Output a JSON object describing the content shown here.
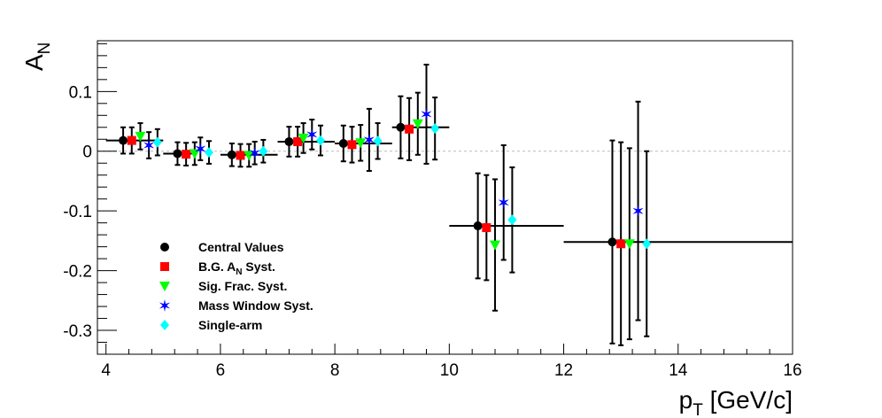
{
  "chart_data": {
    "type": "scatter",
    "title": "",
    "xlabel": "p",
    "xlabel_sub": "T",
    "xlabel_unit": " [GeV/c]",
    "ylabel": "A",
    "ylabel_sub": "N",
    "xlim": [
      3.85,
      16
    ],
    "ylim": [
      -0.34,
      0.185
    ],
    "xticks": [
      4,
      6,
      8,
      10,
      12,
      14,
      16
    ],
    "xtick_labels": [
      "4",
      "6",
      "8",
      "10",
      "12",
      "14",
      "16"
    ],
    "yticks": [
      -0.3,
      -0.2,
      -0.1,
      0,
      0.1
    ],
    "ytick_labels": [
      "-0.3",
      "-0.2",
      "-0.1",
      "0",
      "0.1"
    ],
    "zero_line": true,
    "grid": false,
    "legend_position": "bottom-left",
    "series": [
      {
        "name": "Central Values",
        "marker": "circle",
        "color": "#000000",
        "points": [
          {
            "x": 4.3,
            "y": 0.018,
            "xerr_lo": 4.0,
            "xerr_hi": 5.0,
            "yerr": 0.022
          },
          {
            "x": 5.25,
            "y": -0.004,
            "xerr_lo": 5.0,
            "xerr_hi": 5.5,
            "yerr": 0.019
          },
          {
            "x": 6.2,
            "y": -0.006,
            "xerr_lo": 6.0,
            "xerr_hi": 7.0,
            "yerr": 0.019
          },
          {
            "x": 7.2,
            "y": 0.016,
            "xerr_lo": 7.0,
            "xerr_hi": 8.0,
            "yerr": 0.025
          },
          {
            "x": 8.15,
            "y": 0.013,
            "xerr_lo": 8.0,
            "xerr_hi": 9.0,
            "yerr": 0.03
          },
          {
            "x": 9.15,
            "y": 0.04,
            "xerr_lo": 9.0,
            "xerr_hi": 10.0,
            "yerr": 0.052
          },
          {
            "x": 10.5,
            "y": -0.125,
            "xerr_lo": 10.0,
            "xerr_hi": 12.0,
            "yerr": 0.088
          },
          {
            "x": 12.85,
            "y": -0.152,
            "xerr_lo": 12.0,
            "xerr_hi": 16.0,
            "yerr": 0.17
          }
        ]
      },
      {
        "name": "B.G. A_N Syst.",
        "legend_main": "B.G. A",
        "legend_sub": "N",
        "legend_rest": " Syst.",
        "marker": "square",
        "color": "#ff0000",
        "points": [
          {
            "x": 4.45,
            "y": 0.018,
            "yerr": 0.022
          },
          {
            "x": 5.4,
            "y": -0.005,
            "yerr": 0.019
          },
          {
            "x": 6.35,
            "y": -0.007,
            "yerr": 0.019
          },
          {
            "x": 7.35,
            "y": 0.016,
            "yerr": 0.025
          },
          {
            "x": 8.3,
            "y": 0.011,
            "yerr": 0.03
          },
          {
            "x": 9.3,
            "y": 0.037,
            "yerr": 0.052
          },
          {
            "x": 10.65,
            "y": -0.128,
            "yerr": 0.088
          },
          {
            "x": 13.0,
            "y": -0.155,
            "yerr": 0.17
          }
        ]
      },
      {
        "name": "Sig. Frac. Syst.",
        "marker": "triangle-down",
        "color": "#00ff00",
        "points": [
          {
            "x": 4.6,
            "y": 0.025,
            "yerr": 0.022
          },
          {
            "x": 5.55,
            "y": -0.004,
            "yerr": 0.019
          },
          {
            "x": 6.5,
            "y": -0.007,
            "yerr": 0.019
          },
          {
            "x": 7.45,
            "y": 0.022,
            "yerr": 0.025
          },
          {
            "x": 8.45,
            "y": 0.014,
            "yerr": 0.03
          },
          {
            "x": 9.45,
            "y": 0.046,
            "yerr": 0.052
          },
          {
            "x": 10.8,
            "y": -0.157,
            "yerr": 0.11
          },
          {
            "x": 13.15,
            "y": -0.155,
            "yerr": 0.16
          }
        ]
      },
      {
        "name": "Mass Window Syst.",
        "marker": "star",
        "color": "#0000ff",
        "points": [
          {
            "x": 4.75,
            "y": 0.01,
            "yerr": 0.022
          },
          {
            "x": 5.65,
            "y": 0.004,
            "yerr": 0.019
          },
          {
            "x": 6.6,
            "y": -0.003,
            "yerr": 0.019
          },
          {
            "x": 7.6,
            "y": 0.028,
            "yerr": 0.025
          },
          {
            "x": 8.6,
            "y": 0.019,
            "yerr": 0.052
          },
          {
            "x": 9.6,
            "y": 0.062,
            "yerr": 0.083
          },
          {
            "x": 10.95,
            "y": -0.086,
            "yerr": 0.096
          },
          {
            "x": 13.3,
            "y": -0.1,
            "yerr": 0.183
          }
        ]
      },
      {
        "name": "Single-arm",
        "marker": "diamond",
        "color": "#00ffff",
        "points": [
          {
            "x": 4.9,
            "y": 0.015,
            "yerr": 0.022
          },
          {
            "x": 5.8,
            "y": -0.002,
            "yerr": 0.019
          },
          {
            "x": 6.75,
            "y": 0.0,
            "yerr": 0.019
          },
          {
            "x": 7.75,
            "y": 0.018,
            "yerr": 0.025
          },
          {
            "x": 8.75,
            "y": 0.017,
            "yerr": 0.03
          },
          {
            "x": 9.75,
            "y": 0.038,
            "yerr": 0.052
          },
          {
            "x": 11.1,
            "y": -0.115,
            "yerr": 0.088
          },
          {
            "x": 13.45,
            "y": -0.155,
            "yerr": 0.155
          }
        ]
      }
    ]
  }
}
